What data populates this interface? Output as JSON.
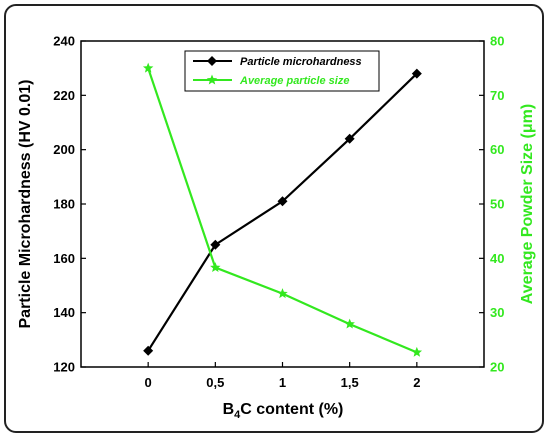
{
  "colors": {
    "hardness": "#000000",
    "size": "#33e81f"
  },
  "chart_data": {
    "type": "line",
    "x": [
      0,
      0.5,
      1,
      1.5,
      2
    ],
    "x_tick_labels": [
      "0",
      "0,5",
      "1",
      "1,5",
      "2"
    ],
    "xlabel_pre": "B",
    "xlabel_sub": "4",
    "xlabel_post": "C content (%)",
    "ylabel_left": "Particle Microhardness (HV 0.01)",
    "ylabel_right": "Average Powder Size (μm)",
    "ylim_left": [
      120,
      240
    ],
    "ylim_right": [
      20,
      80
    ],
    "left_ticks": [
      "120",
      "140",
      "160",
      "180",
      "200",
      "220",
      "240"
    ],
    "right_ticks": [
      "20",
      "30",
      "40",
      "50",
      "60",
      "70",
      "80"
    ],
    "legend_position": "top-center",
    "series": [
      {
        "name": "Particle microhardness",
        "axis": "left",
        "marker": "diamond",
        "values": [
          126,
          165,
          181,
          204,
          228
        ]
      },
      {
        "name": "Average particle size",
        "axis": "right",
        "marker": "star",
        "values": [
          75,
          38.3,
          33.5,
          27.9,
          22.7
        ]
      }
    ]
  }
}
